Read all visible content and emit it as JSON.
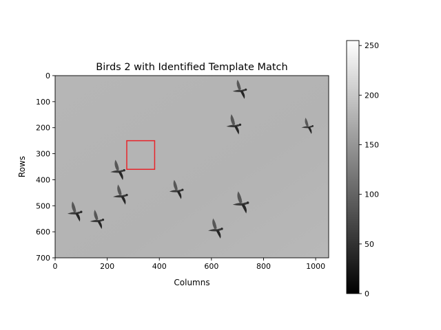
{
  "chart_data": {
    "type": "heatmap",
    "title": "Birds 2 with Identified Template Match",
    "xlabel": "Columns",
    "ylabel": "Rows",
    "xlim": [
      0,
      1050
    ],
    "ylim": [
      700,
      0
    ],
    "x_ticks": [
      0,
      200,
      400,
      600,
      800,
      1000
    ],
    "y_ticks": [
      0,
      100,
      200,
      300,
      400,
      500,
      600,
      700
    ],
    "background_value": 180,
    "colormap": "gray",
    "colorbar": {
      "range": [
        0,
        255
      ],
      "ticks": [
        0,
        50,
        100,
        150,
        200,
        250
      ]
    },
    "match_box": {
      "x0": 275,
      "y0": 250,
      "x1": 382,
      "y1": 360,
      "color": "#e8242a"
    },
    "birds": [
      {
        "x": 708,
        "y": 55,
        "size": 1.0
      },
      {
        "x": 685,
        "y": 190,
        "size": 1.05
      },
      {
        "x": 968,
        "y": 195,
        "size": 0.85
      },
      {
        "x": 240,
        "y": 365,
        "size": 1.05
      },
      {
        "x": 465,
        "y": 440,
        "size": 1.0
      },
      {
        "x": 250,
        "y": 460,
        "size": 1.05
      },
      {
        "x": 712,
        "y": 490,
        "size": 1.15
      },
      {
        "x": 75,
        "y": 525,
        "size": 1.05
      },
      {
        "x": 160,
        "y": 555,
        "size": 1.0
      },
      {
        "x": 615,
        "y": 590,
        "size": 1.05
      }
    ]
  }
}
